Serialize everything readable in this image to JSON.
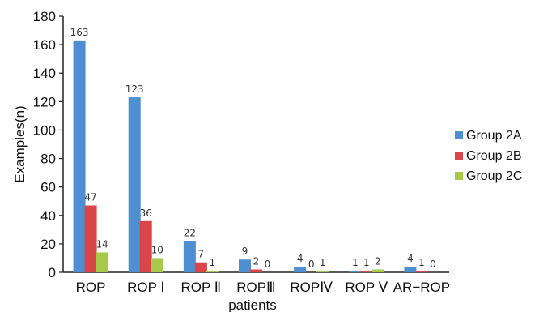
{
  "chart_data": {
    "type": "bar",
    "categories": [
      "ROP",
      "ROP Ⅰ",
      "ROP Ⅱ",
      "ROPⅢ",
      "ROPⅣ",
      "ROP Ⅴ",
      "AR−ROP"
    ],
    "series": [
      {
        "name": "Group 2A",
        "values": [
          163,
          123,
          22,
          9,
          4,
          1,
          4
        ],
        "labels": [
          "163",
          "123",
          "22",
          "9",
          "4",
          "1",
          "4"
        ]
      },
      {
        "name": "Group 2B",
        "values": [
          47,
          36,
          7,
          2,
          0,
          1,
          1
        ],
        "labels": [
          "47",
          "36",
          "7",
          "2",
          "0",
          "1",
          "1"
        ]
      },
      {
        "name": "Group 2C",
        "values": [
          14,
          10,
          1,
          0,
          1,
          2,
          0
        ],
        "labels": [
          "14",
          "10",
          "1",
          "0",
          "1",
          "2",
          "0"
        ]
      }
    ],
    "title": "",
    "xlabel": "patients",
    "ylabel": "Examples(n)",
    "ylim": [
      0,
      180
    ],
    "yticks": [
      "0",
      "20",
      "40",
      "60",
      "80",
      "100",
      "120",
      "140",
      "160",
      "180"
    ],
    "grid": false,
    "legend_position": "right",
    "colors": [
      "#4d8fd1",
      "#d9464a",
      "#a6c94a"
    ]
  }
}
